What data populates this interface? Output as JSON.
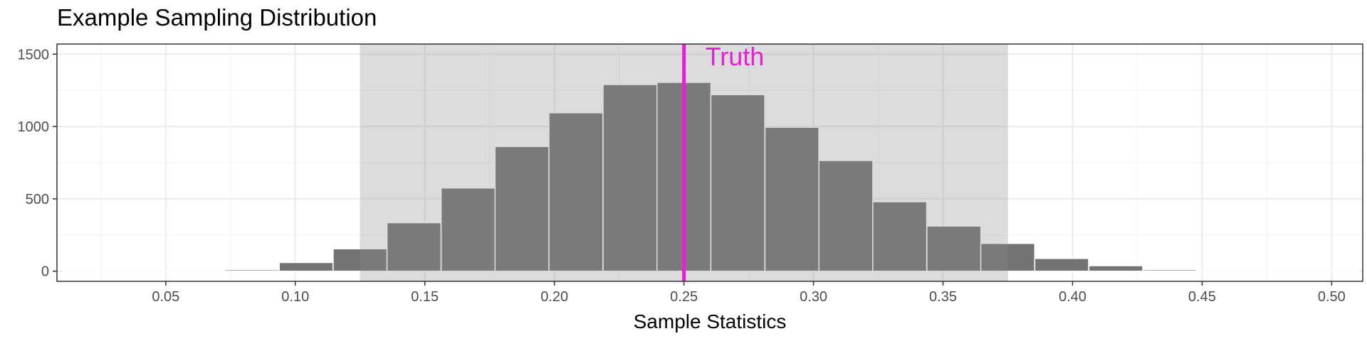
{
  "chart_data": {
    "type": "bar",
    "title": "Example Sampling Distribution",
    "xlabel": "Sample Statistics",
    "ylabel": "",
    "xlim": [
      0.008,
      0.512
    ],
    "ylim": [
      -70,
      1570
    ],
    "x_ticks": [
      0.05,
      0.1,
      0.15,
      0.2,
      0.25,
      0.3,
      0.35,
      0.4,
      0.45,
      0.5
    ],
    "x_tick_labels": [
      "0.05",
      "0.10",
      "0.15",
      "0.20",
      "0.25",
      "0.30",
      "0.35",
      "0.40",
      "0.45",
      "0.50"
    ],
    "y_ticks": [
      0,
      500,
      1000,
      1500
    ],
    "y_tick_labels": [
      "0",
      "500",
      "1000",
      "1500"
    ],
    "bin_width": 0.0208,
    "bins": [
      {
        "x": 0.0208,
        "count": 0
      },
      {
        "x": 0.0417,
        "count": 0
      },
      {
        "x": 0.0625,
        "count": 0
      },
      {
        "x": 0.0833,
        "count": 10
      },
      {
        "x": 0.1042,
        "count": 60
      },
      {
        "x": 0.125,
        "count": 155
      },
      {
        "x": 0.1458,
        "count": 335
      },
      {
        "x": 0.1667,
        "count": 575
      },
      {
        "x": 0.1875,
        "count": 862
      },
      {
        "x": 0.2083,
        "count": 1095
      },
      {
        "x": 0.2292,
        "count": 1290
      },
      {
        "x": 0.25,
        "count": 1305
      },
      {
        "x": 0.2708,
        "count": 1220
      },
      {
        "x": 0.2917,
        "count": 995
      },
      {
        "x": 0.3125,
        "count": 765
      },
      {
        "x": 0.3333,
        "count": 480
      },
      {
        "x": 0.3542,
        "count": 312
      },
      {
        "x": 0.375,
        "count": 192
      },
      {
        "x": 0.3958,
        "count": 88
      },
      {
        "x": 0.4167,
        "count": 38
      },
      {
        "x": 0.4375,
        "count": 10
      },
      {
        "x": 0.4583,
        "count": 0
      },
      {
        "x": 0.4792,
        "count": 0
      },
      {
        "x": 0.5,
        "count": 0
      }
    ],
    "interval": {
      "lower": 0.125,
      "upper": 0.375
    },
    "truth": {
      "value": 0.25,
      "label": "Truth"
    },
    "grid": true,
    "colors": {
      "bar_fill": "#737373",
      "bar_outline": "#ffffff",
      "interval_fill": "#dadada",
      "truth_line": "#e81ed9",
      "grid_major": "#ebebeb",
      "grid_minor": "#f4f4f4",
      "panel_border": "#333333"
    }
  }
}
